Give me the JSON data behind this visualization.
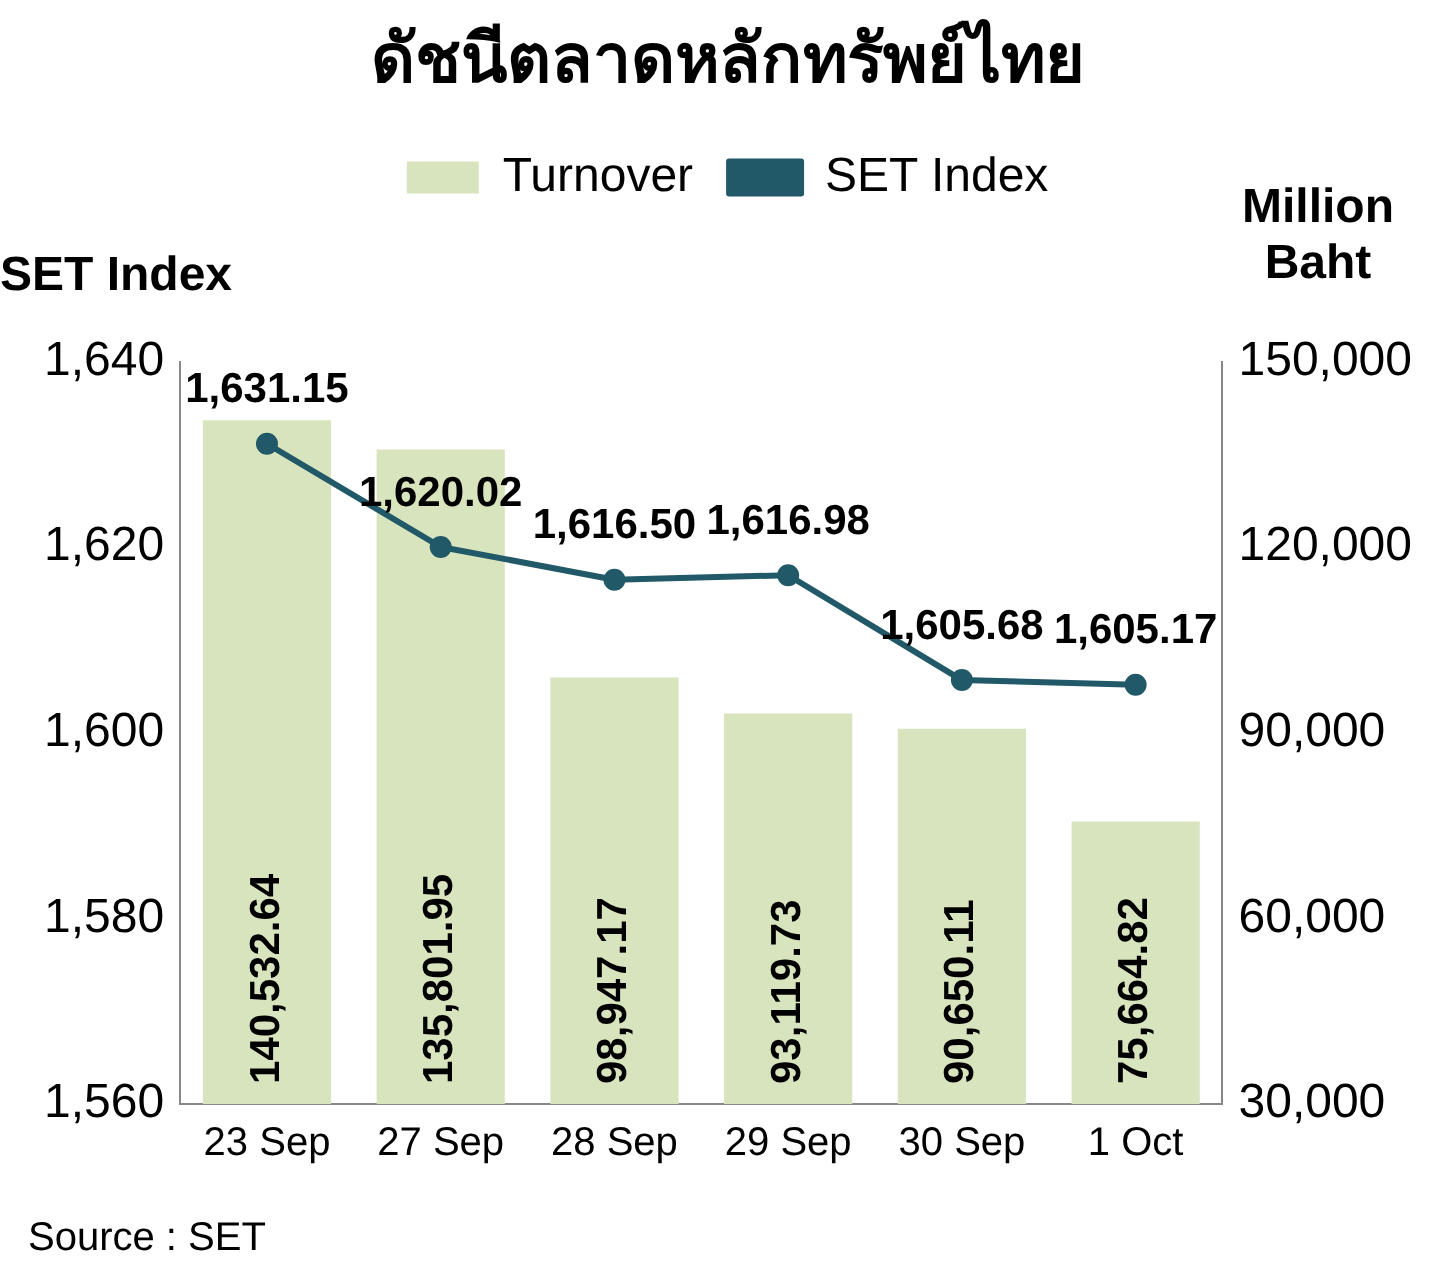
{
  "chart_data": {
    "type": "bar",
    "title": "ดัชนีตลาดหลักทรัพย์ไทย",
    "ylabel": "SET Index",
    "y2label": "Million Baht",
    "categories": [
      "23 Sep",
      "27 Sep",
      "28 Sep",
      "29 Sep",
      "30 Sep",
      "1 Oct"
    ],
    "series": [
      {
        "name": "Turnover",
        "axis": "y2",
        "color": "#d7e4bd",
        "values": [
          140532.64,
          135801.95,
          98947.17,
          93119.73,
          90650.11,
          75664.82
        ],
        "value_labels": [
          "140,532.64",
          "135,801.95",
          "98,947.17",
          "93,119.73",
          "90,650.11",
          "75,664.82"
        ]
      },
      {
        "name": "SET Index",
        "type": "line",
        "color": "#215968",
        "values": [
          1631.15,
          1620.02,
          1616.5,
          1616.98,
          1605.68,
          1605.17
        ],
        "value_labels": [
          "1,631.15",
          "1,620.02",
          "1,616.50",
          "1,616.98",
          "1,605.68",
          "1,605.17"
        ]
      }
    ],
    "ylim": [
      1560,
      1640
    ],
    "yticks": [
      {
        "value": 1560,
        "label": "1,560"
      },
      {
        "value": 1580,
        "label": "1,580"
      },
      {
        "value": 1600,
        "label": "1,600"
      },
      {
        "value": 1620,
        "label": "1,620"
      },
      {
        "value": 1640,
        "label": "1,640"
      }
    ],
    "y2lim": [
      30000,
      150000
    ],
    "y2ticks": [
      {
        "value": 30000,
        "label": "30,000"
      },
      {
        "value": 60000,
        "label": "60,000"
      },
      {
        "value": 90000,
        "label": "90,000"
      },
      {
        "value": 120000,
        "label": "120,000"
      },
      {
        "value": 150000,
        "label": "150,000"
      }
    ],
    "grid": false,
    "legend": "top",
    "marker": "circle",
    "line_style": "solid",
    "annotations": [
      "Source : SET"
    ]
  }
}
